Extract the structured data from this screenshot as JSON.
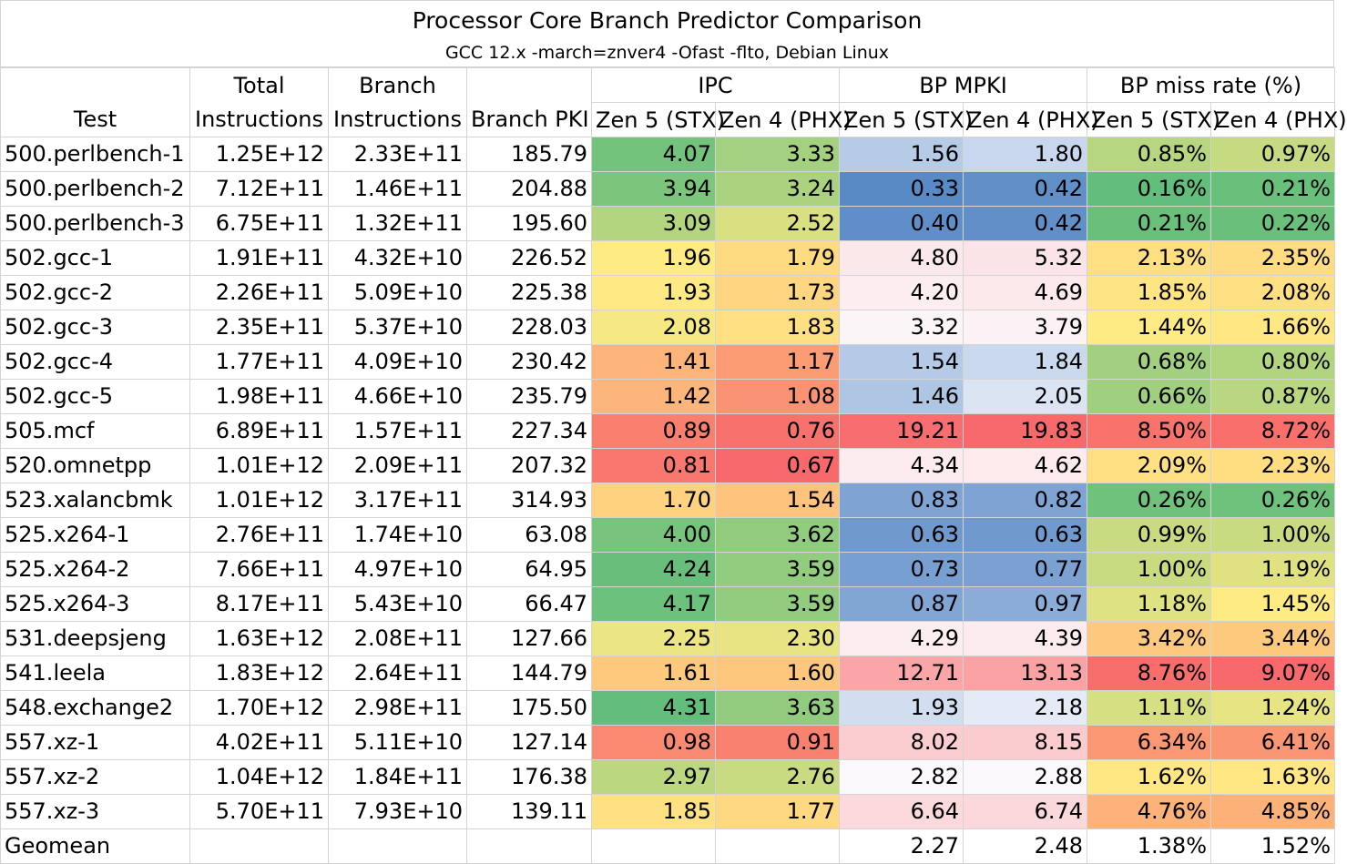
{
  "title": "Processor Core Branch Predictor Comparison",
  "subtitle": "GCC 12.x -march=znver4 -Ofast -flto, Debian Linux",
  "headers": {
    "test": "Test",
    "total_1": "Total",
    "total_2": "Instructions",
    "branch_1": "Branch",
    "branch_2": "Instructions",
    "branch_pki": "Branch PKI",
    "ipc": "IPC",
    "bp_mpki": "BP MPKI",
    "bp_miss": "BP miss rate (%)",
    "zen5": "Zen 5 (STX)",
    "zen4": "Zen 4 (PHX)"
  },
  "colors": {
    "ipc_low": "#f8696b",
    "ipc_mid": "#ffeb84",
    "ipc_high": "#63be7b",
    "mpki_low": "#5a8ac6",
    "mpki_mid": "#fcfcff",
    "mpki_high": "#f8696b",
    "miss_low": "#63be7b",
    "miss_mid": "#ffeb84",
    "miss_high": "#f8696b"
  },
  "chart_data": {
    "type": "table",
    "title": "Processor Core Branch Predictor Comparison",
    "subtitle": "GCC 12.x -march=znver4 -Ofast -flto, Debian Linux",
    "columns": [
      "Test",
      "Total Instructions",
      "Branch Instructions",
      "Branch PKI",
      "IPC Zen 5 (STX)",
      "IPC Zen 4 (PHX)",
      "BP MPKI Zen 5 (STX)",
      "BP MPKI Zen 4 (PHX)",
      "BP miss rate (%) Zen 5 (STX)",
      "BP miss rate (%) Zen 4 (PHX)"
    ],
    "rows": [
      {
        "test": "500.perlbench-1",
        "total": "1.25E+12",
        "branch": "2.33E+11",
        "pki": "185.79",
        "ipc5": "4.07",
        "ipc4": "3.33",
        "mpki5": "1.56",
        "mpki4": "1.80",
        "miss5": "0.85%",
        "miss4": "0.97%"
      },
      {
        "test": "500.perlbench-2",
        "total": "7.12E+11",
        "branch": "1.46E+11",
        "pki": "204.88",
        "ipc5": "3.94",
        "ipc4": "3.24",
        "mpki5": "0.33",
        "mpki4": "0.42",
        "miss5": "0.16%",
        "miss4": "0.21%"
      },
      {
        "test": "500.perlbench-3",
        "total": "6.75E+11",
        "branch": "1.32E+11",
        "pki": "195.60",
        "ipc5": "3.09",
        "ipc4": "2.52",
        "mpki5": "0.40",
        "mpki4": "0.42",
        "miss5": "0.21%",
        "miss4": "0.22%"
      },
      {
        "test": "502.gcc-1",
        "total": "1.91E+11",
        "branch": "4.32E+10",
        "pki": "226.52",
        "ipc5": "1.96",
        "ipc4": "1.79",
        "mpki5": "4.80",
        "mpki4": "5.32",
        "miss5": "2.13%",
        "miss4": "2.35%"
      },
      {
        "test": "502.gcc-2",
        "total": "2.26E+11",
        "branch": "5.09E+10",
        "pki": "225.38",
        "ipc5": "1.93",
        "ipc4": "1.73",
        "mpki5": "4.20",
        "mpki4": "4.69",
        "miss5": "1.85%",
        "miss4": "2.08%"
      },
      {
        "test": "502.gcc-3",
        "total": "2.35E+11",
        "branch": "5.37E+10",
        "pki": "228.03",
        "ipc5": "2.08",
        "ipc4": "1.83",
        "mpki5": "3.32",
        "mpki4": "3.79",
        "miss5": "1.44%",
        "miss4": "1.66%"
      },
      {
        "test": "502.gcc-4",
        "total": "1.77E+11",
        "branch": "4.09E+10",
        "pki": "230.42",
        "ipc5": "1.41",
        "ipc4": "1.17",
        "mpki5": "1.54",
        "mpki4": "1.84",
        "miss5": "0.68%",
        "miss4": "0.80%"
      },
      {
        "test": "502.gcc-5",
        "total": "1.98E+11",
        "branch": "4.66E+10",
        "pki": "235.79",
        "ipc5": "1.42",
        "ipc4": "1.08",
        "mpki5": "1.46",
        "mpki4": "2.05",
        "miss5": "0.66%",
        "miss4": "0.87%"
      },
      {
        "test": "505.mcf",
        "total": "6.89E+11",
        "branch": "1.57E+11",
        "pki": "227.34",
        "ipc5": "0.89",
        "ipc4": "0.76",
        "mpki5": "19.21",
        "mpki4": "19.83",
        "miss5": "8.50%",
        "miss4": "8.72%"
      },
      {
        "test": "520.omnetpp",
        "total": "1.01E+12",
        "branch": "2.09E+11",
        "pki": "207.32",
        "ipc5": "0.81",
        "ipc4": "0.67",
        "mpki5": "4.34",
        "mpki4": "4.62",
        "miss5": "2.09%",
        "miss4": "2.23%"
      },
      {
        "test": "523.xalancbmk",
        "total": "1.01E+12",
        "branch": "3.17E+11",
        "pki": "314.93",
        "ipc5": "1.70",
        "ipc4": "1.54",
        "mpki5": "0.83",
        "mpki4": "0.82",
        "miss5": "0.26%",
        "miss4": "0.26%"
      },
      {
        "test": "525.x264-1",
        "total": "2.76E+11",
        "branch": "1.74E+10",
        "pki": "63.08",
        "ipc5": "4.00",
        "ipc4": "3.62",
        "mpki5": "0.63",
        "mpki4": "0.63",
        "miss5": "0.99%",
        "miss4": "1.00%"
      },
      {
        "test": "525.x264-2",
        "total": "7.66E+11",
        "branch": "4.97E+10",
        "pki": "64.95",
        "ipc5": "4.24",
        "ipc4": "3.59",
        "mpki5": "0.73",
        "mpki4": "0.77",
        "miss5": "1.00%",
        "miss4": "1.19%"
      },
      {
        "test": "525.x264-3",
        "total": "8.17E+11",
        "branch": "5.43E+10",
        "pki": "66.47",
        "ipc5": "4.17",
        "ipc4": "3.59",
        "mpki5": "0.87",
        "mpki4": "0.97",
        "miss5": "1.18%",
        "miss4": "1.45%"
      },
      {
        "test": "531.deepsjeng",
        "total": "1.63E+12",
        "branch": "2.08E+11",
        "pki": "127.66",
        "ipc5": "2.25",
        "ipc4": "2.30",
        "mpki5": "4.29",
        "mpki4": "4.39",
        "miss5": "3.42%",
        "miss4": "3.44%"
      },
      {
        "test": "541.leela",
        "total": "1.83E+12",
        "branch": "2.64E+11",
        "pki": "144.79",
        "ipc5": "1.61",
        "ipc4": "1.60",
        "mpki5": "12.71",
        "mpki4": "13.13",
        "miss5": "8.76%",
        "miss4": "9.07%"
      },
      {
        "test": "548.exchange2",
        "total": "1.70E+12",
        "branch": "2.98E+11",
        "pki": "175.50",
        "ipc5": "4.31",
        "ipc4": "3.63",
        "mpki5": "1.93",
        "mpki4": "2.18",
        "miss5": "1.11%",
        "miss4": "1.24%"
      },
      {
        "test": "557.xz-1",
        "total": "4.02E+11",
        "branch": "5.11E+10",
        "pki": "127.14",
        "ipc5": "0.98",
        "ipc4": "0.91",
        "mpki5": "8.02",
        "mpki4": "8.15",
        "miss5": "6.34%",
        "miss4": "6.41%"
      },
      {
        "test": "557.xz-2",
        "total": "1.04E+12",
        "branch": "1.84E+11",
        "pki": "176.38",
        "ipc5": "2.97",
        "ipc4": "2.76",
        "mpki5": "2.82",
        "mpki4": "2.88",
        "miss5": "1.62%",
        "miss4": "1.63%"
      },
      {
        "test": "557.xz-3",
        "total": "5.70E+11",
        "branch": "7.93E+10",
        "pki": "139.11",
        "ipc5": "1.85",
        "ipc4": "1.77",
        "mpki5": "6.64",
        "mpki4": "6.74",
        "miss5": "4.76%",
        "miss4": "4.85%"
      }
    ],
    "geomean": {
      "label": "Geomean",
      "mpki5": "2.27",
      "mpki4": "2.48",
      "miss5": "1.38%",
      "miss4": "1.52%"
    }
  }
}
